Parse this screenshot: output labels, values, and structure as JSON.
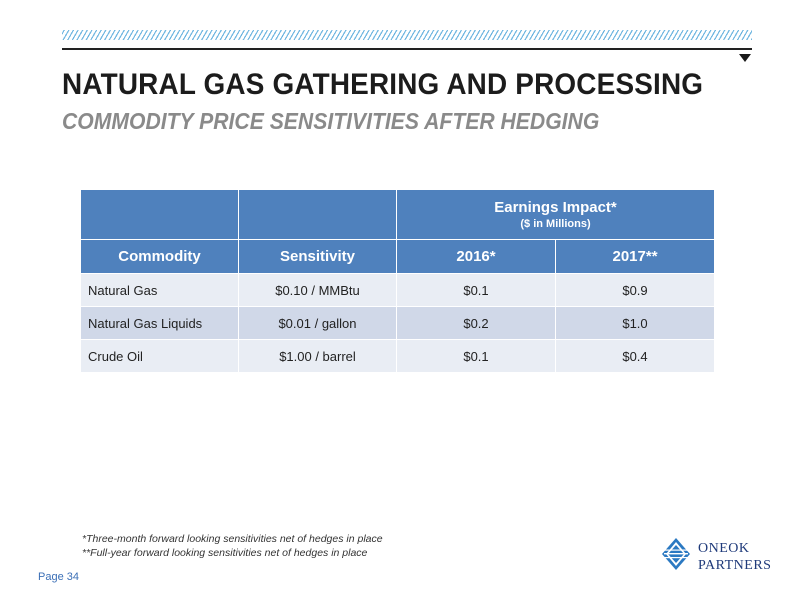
{
  "header": {
    "title": "NATURAL GAS GATHERING AND PROCESSING",
    "subtitle": "COMMODITY PRICE SENSITIVITIES AFTER HEDGING"
  },
  "table": {
    "group_header": "Earnings Impact*",
    "group_subheader": "($ in Millions)",
    "columns": [
      "Commodity",
      "Sensitivity",
      "2016*",
      "2017**"
    ],
    "rows": [
      {
        "commodity": "Natural Gas",
        "sensitivity": "$0.10 / MMBtu",
        "y2016": "$0.1",
        "y2017": "$0.9"
      },
      {
        "commodity": "Natural Gas Liquids",
        "sensitivity": "$0.01 / gallon",
        "y2016": "$0.2",
        "y2017": "$1.0"
      },
      {
        "commodity": "Crude Oil",
        "sensitivity": "$1.00 / barrel",
        "y2016": "$0.1",
        "y2017": "$0.4"
      }
    ]
  },
  "footnotes": [
    "*Three-month forward looking sensitivities net of hedges in place",
    "**Full-year forward looking sensitivities net of hedges in place"
  ],
  "page": "Page 34",
  "logo": {
    "line1": "ONEOK",
    "line2": "PARTNERS"
  },
  "colors": {
    "header_blue": "#4f81bd",
    "row_light": "#e9edf4",
    "row_dark": "#d0d8e8",
    "hatch": "#6fb6e0",
    "logo_blue": "#1f3a7a"
  }
}
